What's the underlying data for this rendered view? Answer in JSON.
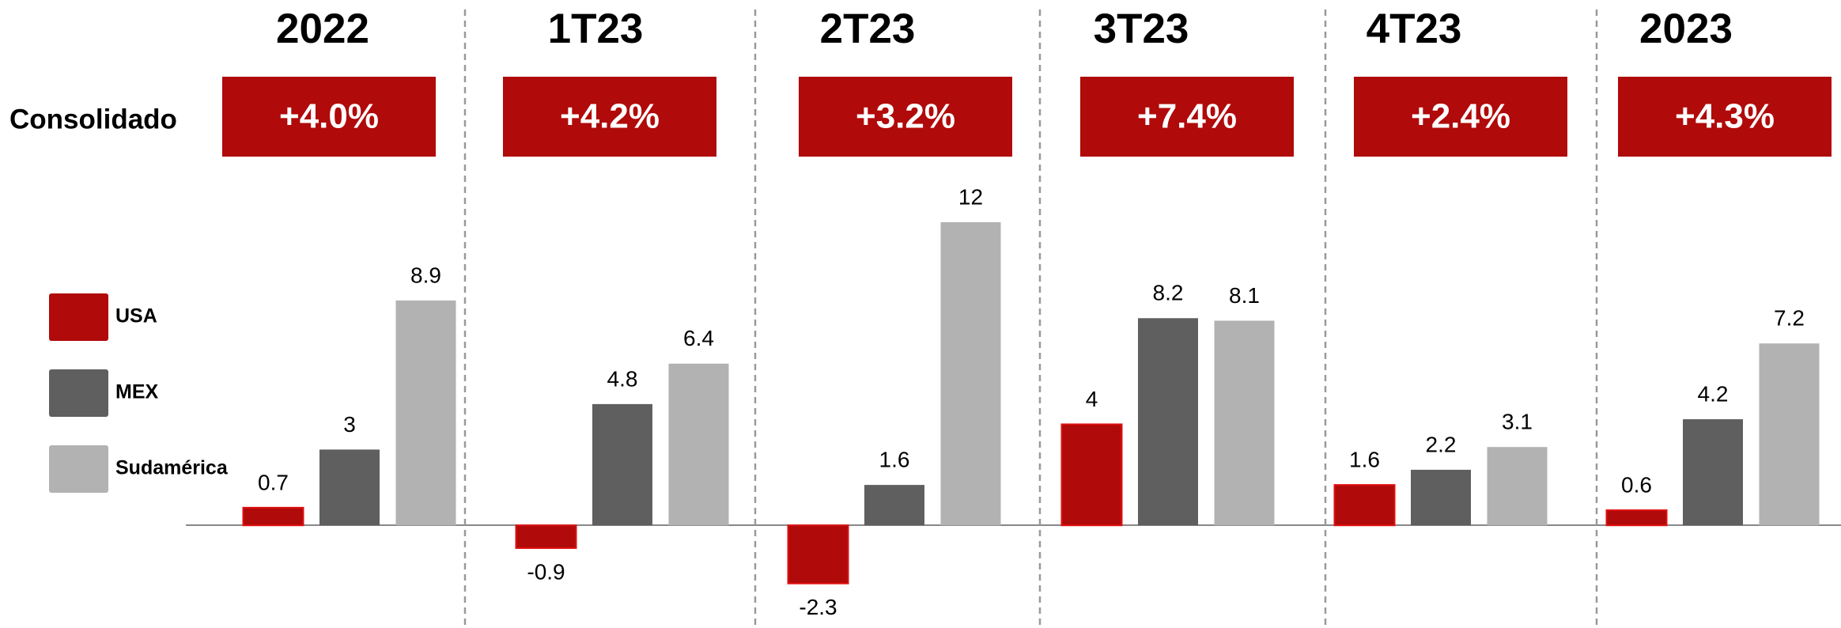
{
  "chart_data": {
    "type": "bar",
    "categories": [
      "2022",
      "1T23",
      "2T23",
      "3T23",
      "4T23",
      "2023"
    ],
    "consolidado": {
      "label": "Consolidado",
      "values": [
        4.0,
        4.2,
        3.2,
        7.4,
        2.4,
        4.3
      ],
      "value_labels": [
        "+4.0%",
        "+4.2%",
        "+3.2%",
        "+7.4%",
        "+2.4%",
        "+4.3%"
      ],
      "color": "#b00a0a"
    },
    "series": [
      {
        "name": "USA",
        "color": "#b00a0a",
        "values": [
          0.7,
          -0.9,
          -2.3,
          4,
          1.6,
          0.6
        ]
      },
      {
        "name": "MEX",
        "color": "#5f5f5f",
        "values": [
          3,
          4.8,
          1.6,
          8.2,
          2.2,
          4.2
        ]
      },
      {
        "name": "Sudamérica",
        "color": "#b2b2b2",
        "values": [
          8.9,
          6.4,
          12,
          8.1,
          3.1,
          7.2
        ]
      }
    ],
    "ylim": [
      -4,
      14
    ]
  }
}
